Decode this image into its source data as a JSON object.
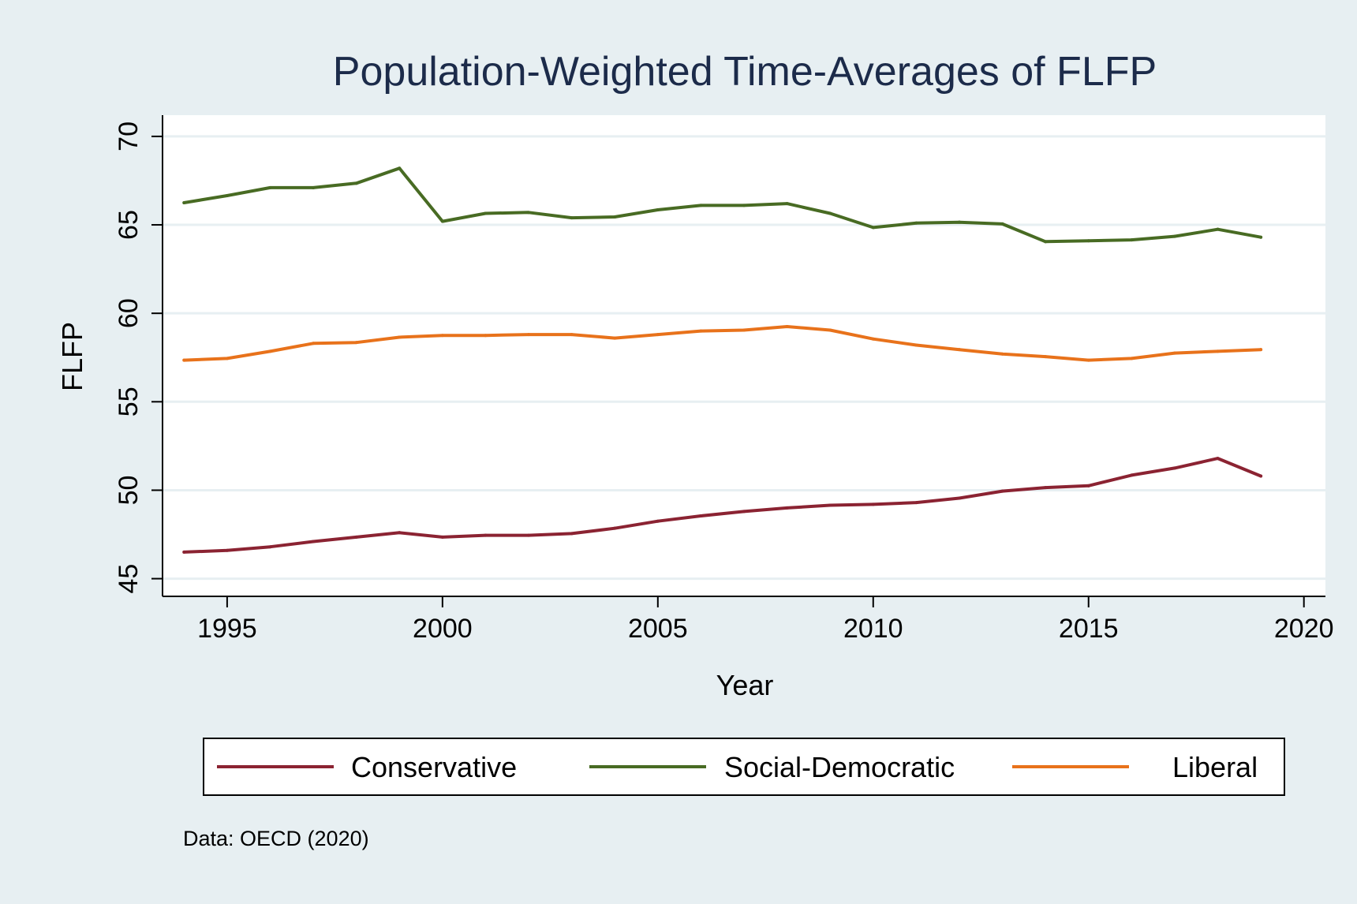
{
  "chart_data": {
    "type": "line",
    "title": "Population-Weighted Time-Averages of FLFP",
    "xlabel": "Year",
    "ylabel": "FLFP",
    "xlim": [
      1993.5,
      2020.5
    ],
    "ylim": [
      44,
      71.2
    ],
    "x_ticks": [
      1995,
      2000,
      2005,
      2010,
      2015,
      2020
    ],
    "y_ticks": [
      45,
      50,
      55,
      60,
      65,
      70
    ],
    "grid": true,
    "legend_position": "bottom",
    "note": "Data: OECD (2020)",
    "background_color": "#e7eff2",
    "plot_background_color": "#ffffff",
    "x": [
      1994,
      1995,
      1996,
      1997,
      1998,
      1999,
      2000,
      2001,
      2002,
      2003,
      2004,
      2005,
      2006,
      2007,
      2008,
      2009,
      2010,
      2011,
      2012,
      2013,
      2014,
      2015,
      2016,
      2017,
      2018,
      2019
    ],
    "series": [
      {
        "name": "Conservative",
        "color": "#8b2332",
        "values": [
          46.5,
          46.6,
          46.8,
          47.1,
          47.35,
          47.6,
          47.35,
          47.45,
          47.45,
          47.55,
          47.85,
          48.25,
          48.55,
          48.8,
          49.0,
          49.15,
          49.2,
          49.3,
          49.55,
          49.95,
          50.15,
          50.25,
          50.85,
          51.25,
          51.8,
          50.8
        ]
      },
      {
        "name": "Social-Democratic",
        "color": "#486b23",
        "values": [
          66.25,
          66.65,
          67.1,
          67.1,
          67.35,
          68.2,
          65.2,
          65.65,
          65.7,
          65.4,
          65.45,
          65.85,
          66.1,
          66.1,
          66.2,
          65.65,
          64.85,
          65.1,
          65.15,
          65.05,
          64.05,
          64.1,
          64.15,
          64.35,
          64.75,
          64.3
        ]
      },
      {
        "name": "Liberal",
        "color": "#e8721b",
        "values": [
          57.35,
          57.45,
          57.85,
          58.3,
          58.35,
          58.65,
          58.75,
          58.75,
          58.8,
          58.8,
          58.6,
          58.8,
          59.0,
          59.05,
          59.25,
          59.05,
          58.55,
          58.2,
          57.95,
          57.7,
          57.55,
          57.35,
          57.45,
          57.75,
          57.85,
          57.95
        ]
      }
    ]
  }
}
